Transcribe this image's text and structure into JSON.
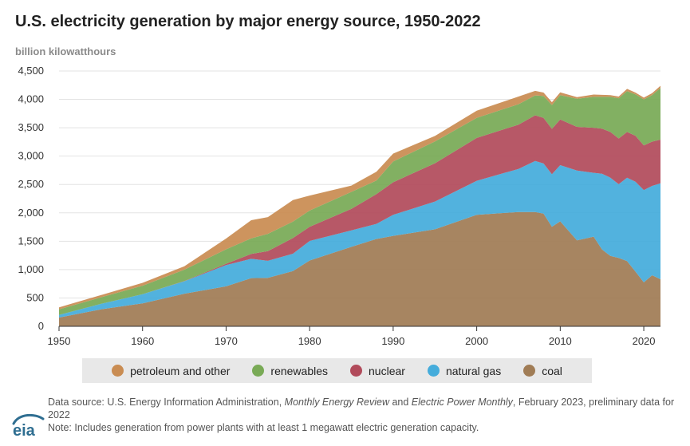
{
  "header": {
    "title": "U.S. electricity generation by major energy source, 1950-2022",
    "units": "billion kilowatthours"
  },
  "footer": {
    "source_prefix": "Data source: U.S. Energy Information Administration, ",
    "source_pub1": "Monthly Energy Review",
    "source_and": " and ",
    "source_pub2": "Electric Power Monthly",
    "source_suffix": ", February 2023, preliminary data for 2022",
    "note": "Note: Includes generation from power plants with at least 1 megawatt electric generation capacity.",
    "logo_text": "eia"
  },
  "colors": {
    "coal": "#a07c55",
    "natural_gas": "#45acdb",
    "nuclear": "#b14b5b",
    "renewables": "#79aa56",
    "petroleum_and_other": "#c98c52",
    "logo": "#2f6e91"
  },
  "chart_data": {
    "type": "area",
    "stacked": true,
    "title": "U.S. electricity generation by major energy source, 1950-2022",
    "ylabel": "billion kilowatthours",
    "xlim": [
      1950,
      2022
    ],
    "ylim": [
      0,
      4500
    ],
    "x_ticks": [
      1950,
      1960,
      1970,
      1980,
      1990,
      2000,
      2010,
      2020
    ],
    "y_ticks": [
      0,
      500,
      1000,
      1500,
      2000,
      2500,
      3000,
      3500,
      4000,
      4500
    ],
    "y_tick_labels": [
      "0",
      "500",
      "1,000",
      "1,500",
      "2,000",
      "2,500",
      "3,000",
      "3,500",
      "4,000",
      "4,500"
    ],
    "grid": "horizontal",
    "legend_position": "bottom",
    "legend": [
      "petroleum and other",
      "renewables",
      "nuclear",
      "natural gas",
      "coal"
    ],
    "x": [
      1950,
      1955,
      1960,
      1965,
      1970,
      1973,
      1975,
      1978,
      1980,
      1985,
      1988,
      1990,
      1995,
      2000,
      2005,
      2007,
      2008,
      2009,
      2010,
      2012,
      2014,
      2015,
      2016,
      2017,
      2018,
      2019,
      2020,
      2021,
      2022
    ],
    "series": [
      {
        "name": "coal",
        "values": [
          155,
          300,
          405,
          575,
          705,
          850,
          855,
          975,
          1160,
          1400,
          1540,
          1595,
          1710,
          1965,
          2015,
          2015,
          1985,
          1755,
          1850,
          1515,
          1580,
          1355,
          1240,
          1205,
          1150,
          965,
          775,
          900,
          830
        ]
      },
      {
        "name": "natural gas",
        "values": [
          45,
          95,
          160,
          220,
          375,
          340,
          300,
          305,
          345,
          290,
          265,
          370,
          490,
          600,
          760,
          900,
          885,
          925,
          990,
          1230,
          1125,
          1335,
          1380,
          1300,
          1470,
          1585,
          1625,
          1575,
          1690
        ]
      },
      {
        "name": "nuclear",
        "values": [
          0,
          0,
          1,
          4,
          22,
          85,
          170,
          275,
          250,
          380,
          525,
          575,
          675,
          755,
          780,
          805,
          805,
          800,
          805,
          770,
          795,
          795,
          805,
          805,
          805,
          810,
          790,
          780,
          770
        ]
      },
      {
        "name": "renewables",
        "values": [
          100,
          115,
          150,
          200,
          255,
          275,
          305,
          290,
          285,
          300,
          240,
          365,
          385,
          355,
          360,
          350,
          385,
          420,
          430,
          495,
          545,
          560,
          620,
          710,
          720,
          730,
          810,
          820,
          910
        ]
      },
      {
        "name": "petroleum and other",
        "values": [
          35,
          40,
          50,
          60,
          190,
          320,
          295,
          380,
          265,
          110,
          155,
          140,
          95,
          125,
          135,
          80,
          60,
          50,
          50,
          30,
          40,
          35,
          30,
          30,
          40,
          30,
          30,
          35,
          40
        ]
      }
    ]
  }
}
